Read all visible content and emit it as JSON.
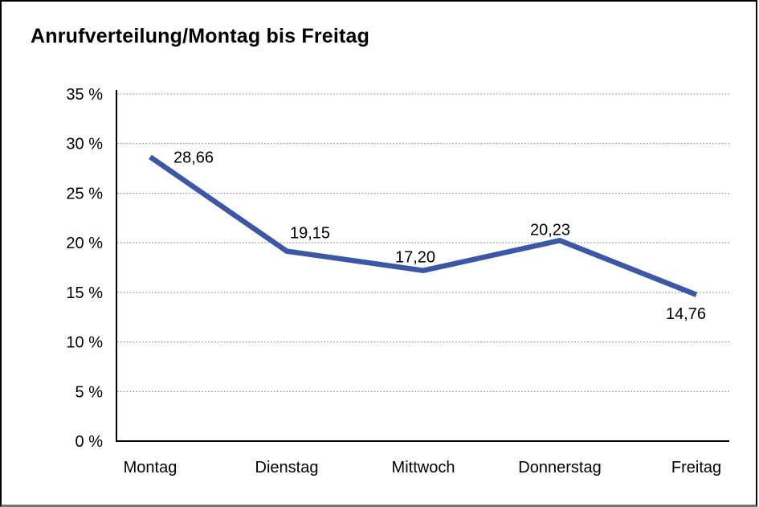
{
  "window": {
    "background": "#ffffff",
    "border_color": "#000000"
  },
  "chart_data": {
    "type": "line",
    "title": "Anrufverteilung/Montag bis Freitag",
    "categories": [
      "Montag",
      "Dienstag",
      "Mittwoch",
      "Donnerstag",
      "Freitag"
    ],
    "series": [
      {
        "name": "Anrufverteilung",
        "values": [
          28.66,
          19.15,
          17.2,
          20.23,
          14.76
        ]
      }
    ],
    "data_labels": [
      "28,66",
      "19,15",
      "17,20",
      "20,23",
      "14,76"
    ],
    "xlabel": "",
    "ylabel": "",
    "ylim": [
      0,
      35
    ],
    "ytick_step": 5,
    "ytick_labels": [
      "0 %",
      "5 %",
      "10 %",
      "15 %",
      "20 %",
      "25 %",
      "30 %",
      "35 %"
    ],
    "grid": "horizontal-dotted",
    "legend_position": "none",
    "colors": {
      "line": "#3b57a6",
      "grid": "#848484",
      "axis": "#000000",
      "text": "#000000",
      "background": "#ffffff"
    }
  }
}
